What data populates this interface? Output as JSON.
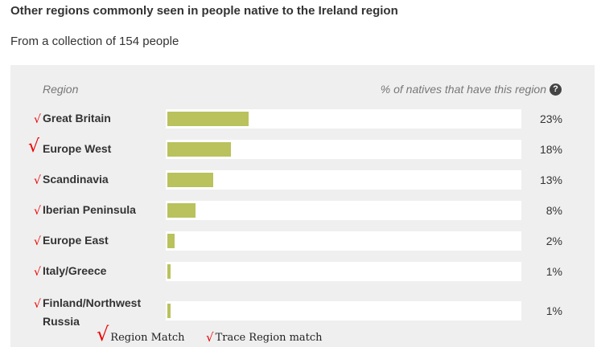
{
  "title": "Other regions commonly seen in people native to the Ireland region",
  "subtitle": "From a collection of 154 people",
  "header": {
    "region": "Region",
    "percent": "% of natives that have this region",
    "help_symbol": "?"
  },
  "check_symbol": "√",
  "legend": {
    "region_match": "Region Match",
    "trace_region_match": "Trace Region match"
  },
  "colors": {
    "bar": "#b9c25c",
    "check": "#e00000",
    "panel": "#efefef"
  },
  "chart_data": {
    "type": "bar",
    "orientation": "horizontal",
    "categories": [
      "Great Britain",
      "Europe West",
      "Scandinavia",
      "Iberian Peninsula",
      "Europe East",
      "Italy/Greece",
      "Finland/Northwest Russia"
    ],
    "values": [
      23,
      18,
      13,
      8,
      2,
      1,
      1
    ],
    "value_labels": [
      "23%",
      "18%",
      "13%",
      "8%",
      "2%",
      "1%",
      "1%"
    ],
    "match_type": [
      "trace",
      "region",
      "trace",
      "trace",
      "trace",
      "trace",
      "trace"
    ],
    "xlim": [
      0,
      100
    ],
    "grid": false
  }
}
